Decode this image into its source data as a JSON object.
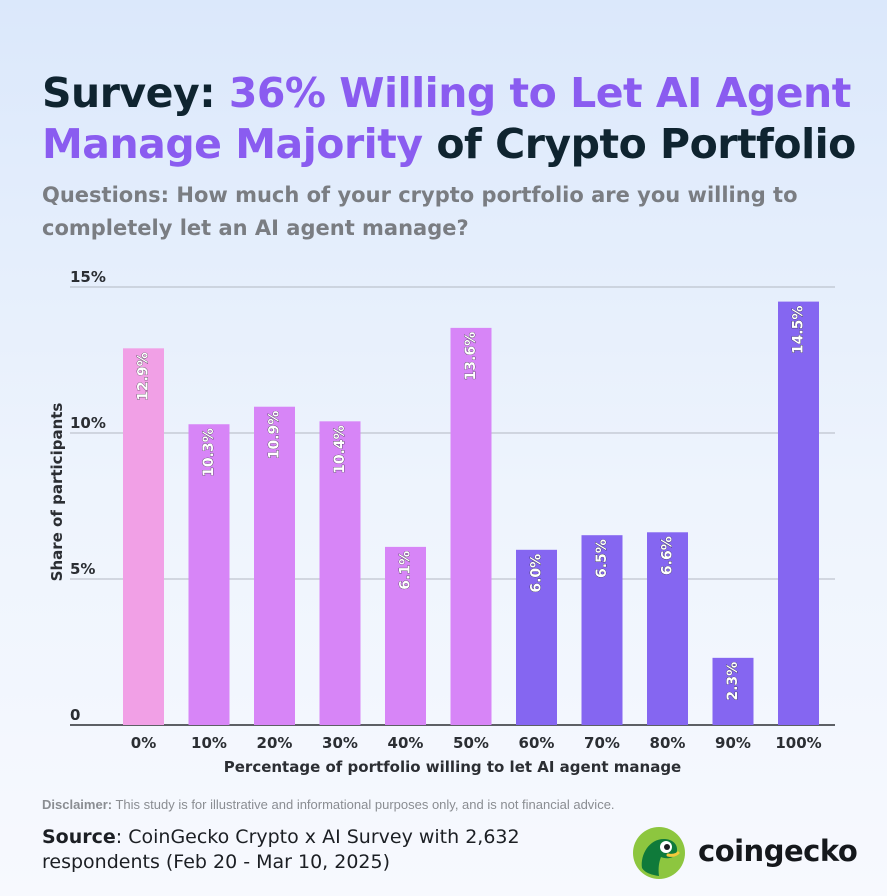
{
  "header": {
    "title_part1": "Survey: ",
    "title_highlight": "36% Willing to Let AI Agent Manage Majority",
    "title_part2": " of Crypto Portfolio",
    "question": "Questions: How much of your crypto portfolio are you willing to completely let an AI agent manage?"
  },
  "chart_data": {
    "type": "bar",
    "title": "Survey: 36% Willing to Let AI Agent Manage Majority of Crypto Portfolio",
    "subtitle": "Questions: How much of your crypto portfolio are you willing to completely let an AI agent manage?",
    "categories": [
      "0%",
      "10%",
      "20%",
      "30%",
      "40%",
      "50%",
      "60%",
      "70%",
      "80%",
      "90%",
      "100%"
    ],
    "values": [
      12.9,
      10.3,
      10.9,
      10.4,
      6.1,
      13.6,
      6.0,
      6.5,
      6.6,
      2.3,
      14.5
    ],
    "value_labels": [
      "12.9%",
      "10.3%",
      "10.9%",
      "10.4%",
      "6.1%",
      "13.6%",
      "6.0%",
      "6.5%",
      "6.6%",
      "2.3%",
      "14.5%"
    ],
    "bar_colors": [
      "#f1a0e6",
      "#d785f7",
      "#d785f7",
      "#d785f7",
      "#d785f7",
      "#d785f7",
      "#8566f1",
      "#8566f1",
      "#8566f1",
      "#8566f1",
      "#8566f1"
    ],
    "xlabel": "Percentage of portfolio willing to let AI agent manage",
    "ylabel": "Share of participants",
    "yticks": [
      0,
      5,
      10,
      15
    ],
    "ytick_labels": [
      "0",
      "5%",
      "10%",
      "15%"
    ],
    "ylim": [
      0,
      15
    ],
    "grid": true
  },
  "footer": {
    "disclaimer_label": "Disclaimer:",
    "disclaimer_text": " This study is for illustrative and informational purposes only, and is not financial advice.",
    "source_label": "Source",
    "source_text": ": CoinGecko Crypto x AI Survey with 2,632 respondents (Feb 20 - Mar 10, 2025)",
    "brand": "coingecko"
  },
  "colors": {
    "title_dark": "#0f2430",
    "title_highlight": "#8a5cf0",
    "gridline": "#b3b8c2",
    "logo_yellow": "#8dc63f"
  }
}
